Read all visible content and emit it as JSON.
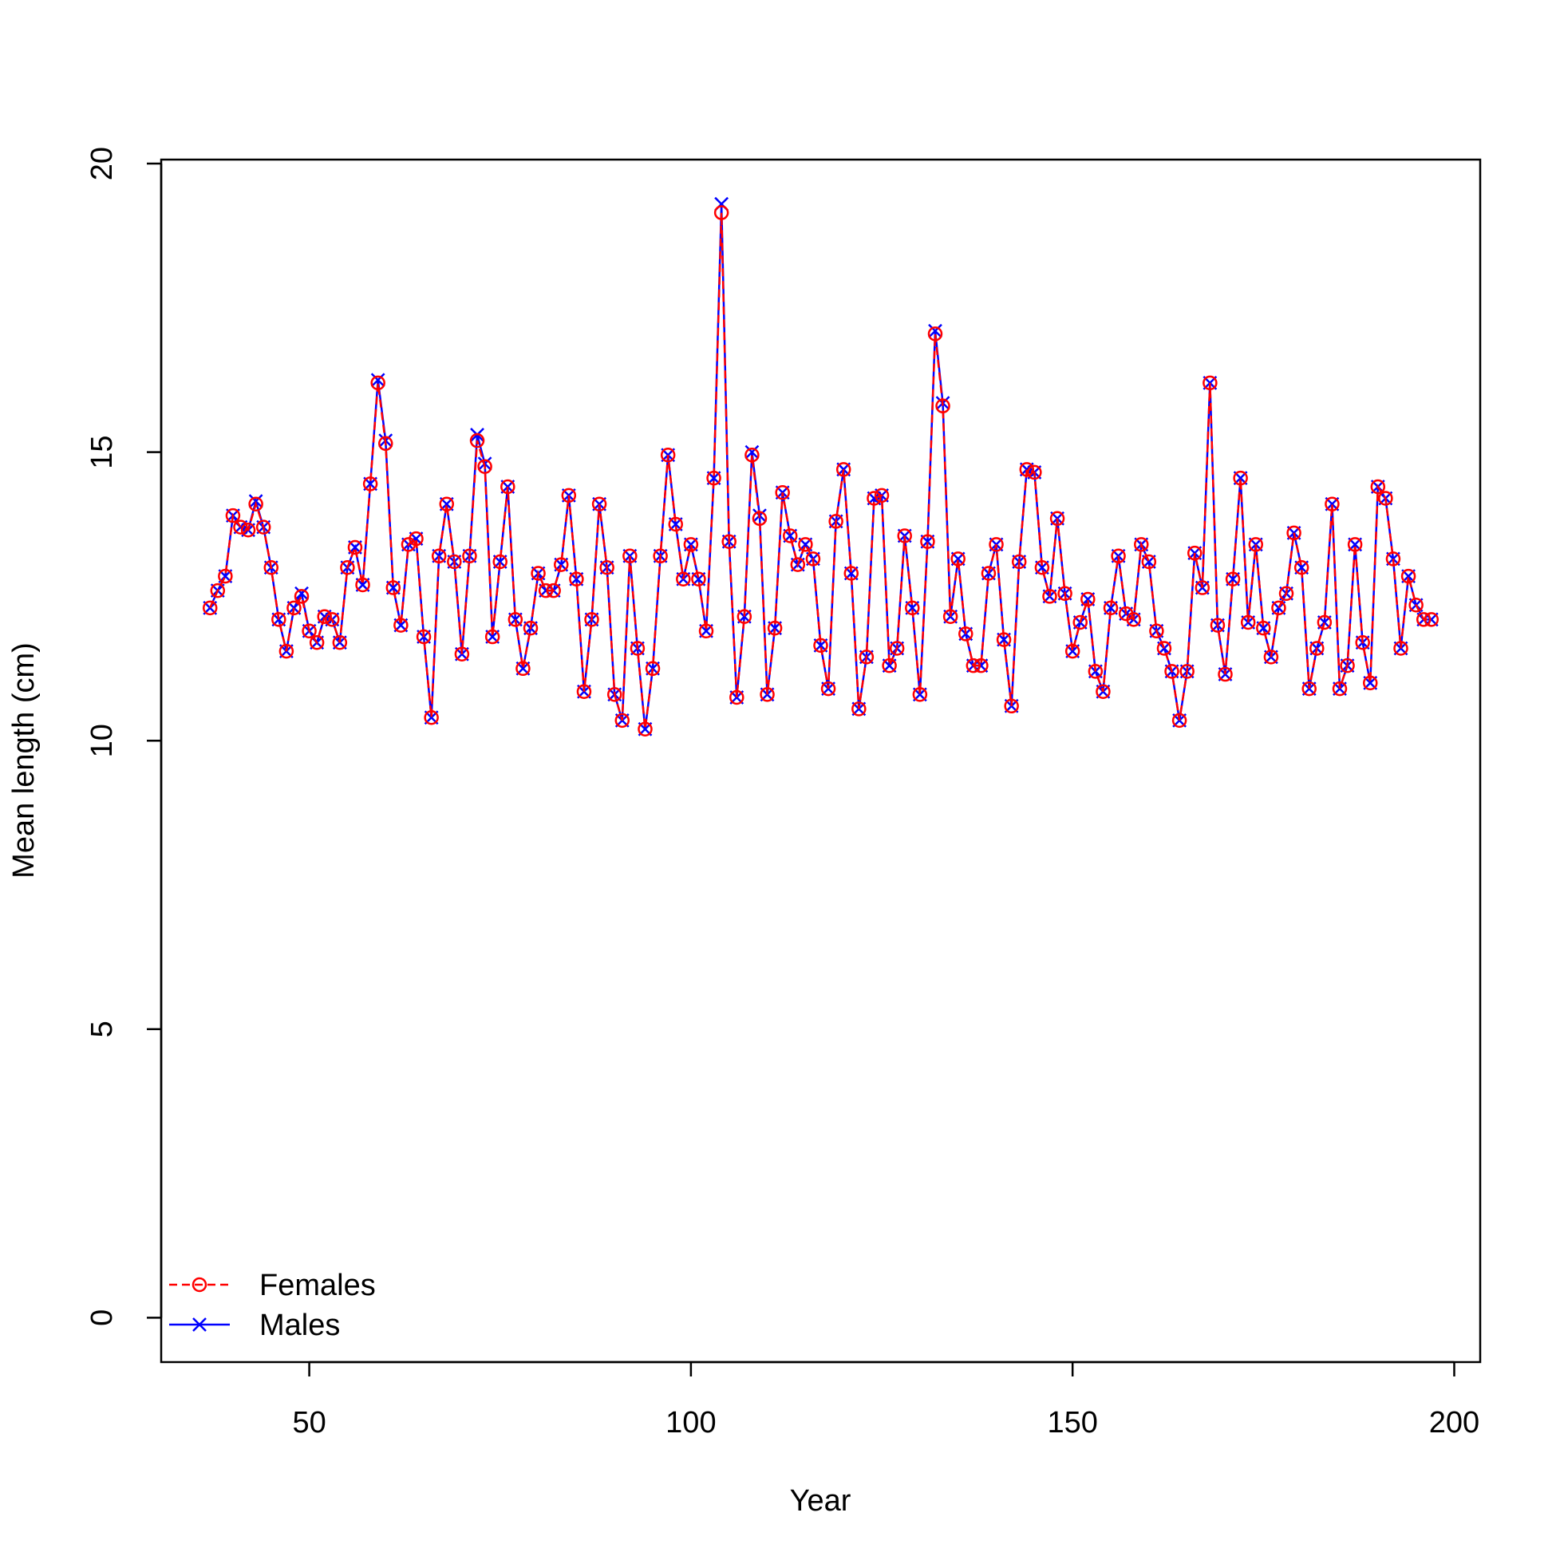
{
  "chart_data": {
    "type": "line",
    "xlabel": "Year",
    "ylabel": "Mean length (cm)",
    "xlim": [
      30.6,
      203.4
    ],
    "xticks": [
      50,
      100,
      150,
      200
    ],
    "ylim": [
      -0.77,
      20.07
    ],
    "yticks": [
      0,
      5,
      10,
      15,
      20
    ],
    "legend": "bottomleft",
    "x": [
      37,
      38,
      39,
      40,
      41,
      42,
      43,
      44,
      45,
      46,
      47,
      48,
      49,
      50,
      51,
      52,
      53,
      54,
      55,
      56,
      57,
      58,
      59,
      60,
      61,
      62,
      63,
      64,
      65,
      66,
      67,
      68,
      69,
      70,
      71,
      72,
      73,
      74,
      75,
      76,
      77,
      78,
      79,
      80,
      81,
      82,
      83,
      84,
      85,
      86,
      87,
      88,
      89,
      90,
      91,
      92,
      93,
      94,
      95,
      96,
      97,
      98,
      99,
      100,
      101,
      102,
      103,
      104,
      105,
      106,
      107,
      108,
      109,
      110,
      111,
      112,
      113,
      114,
      115,
      116,
      117,
      118,
      119,
      120,
      121,
      122,
      123,
      124,
      125,
      126,
      127,
      128,
      129,
      130,
      131,
      132,
      133,
      134,
      135,
      136,
      137,
      138,
      139,
      140,
      141,
      142,
      143,
      144,
      145,
      146,
      147,
      148,
      149,
      150,
      151,
      152,
      153,
      154,
      155,
      156,
      157,
      158,
      159,
      160,
      161,
      162,
      163,
      164,
      165,
      166,
      167,
      168,
      169,
      170,
      171,
      172,
      173,
      174,
      175,
      176,
      177,
      178,
      179,
      180,
      181,
      182,
      183,
      184,
      185,
      186,
      187,
      188,
      189,
      190,
      191,
      192,
      193,
      194,
      195,
      196,
      197
    ],
    "series": [
      {
        "name": "Males",
        "color": "#0000ff",
        "marker": "x",
        "dash": false,
        "values": [
          12.3,
          12.6,
          12.85,
          13.9,
          13.7,
          13.65,
          14.15,
          13.7,
          13.0,
          12.1,
          11.55,
          12.3,
          12.55,
          11.9,
          11.7,
          12.15,
          12.1,
          11.7,
          13.0,
          13.35,
          12.7,
          14.45,
          16.25,
          15.2,
          12.65,
          12.0,
          13.4,
          13.5,
          11.8,
          10.4,
          13.2,
          14.1,
          13.1,
          11.5,
          13.2,
          15.3,
          14.8,
          11.8,
          13.1,
          14.4,
          12.1,
          11.25,
          11.95,
          12.9,
          12.6,
          12.6,
          13.05,
          14.25,
          12.8,
          10.85,
          12.1,
          14.1,
          13.0,
          10.8,
          10.35,
          13.2,
          11.6,
          10.2,
          11.25,
          13.2,
          14.95,
          13.75,
          12.8,
          13.4,
          12.8,
          11.9,
          14.55,
          19.3,
          13.45,
          10.75,
          12.15,
          15.0,
          13.9,
          10.8,
          11.95,
          14.3,
          13.55,
          13.05,
          13.4,
          13.15,
          11.65,
          10.9,
          13.8,
          14.7,
          12.9,
          10.55,
          11.45,
          14.2,
          14.25,
          11.3,
          11.6,
          13.55,
          12.3,
          10.8,
          13.45,
          17.1,
          15.85,
          12.15,
          13.15,
          11.85,
          11.3,
          11.3,
          12.9,
          13.4,
          11.75,
          10.6,
          13.1,
          14.7,
          14.65,
          13.0,
          12.5,
          13.85,
          12.55,
          11.55,
          12.05,
          12.45,
          11.2,
          10.85,
          12.3,
          13.2,
          12.2,
          12.1,
          13.4,
          13.1,
          11.9,
          11.6,
          11.2,
          10.35,
          11.2,
          13.25,
          12.65,
          16.2,
          12.0,
          11.15,
          12.8,
          14.55,
          12.05,
          13.4,
          11.95,
          11.45,
          12.3,
          12.55,
          13.6,
          13.0,
          10.9,
          11.6,
          12.05,
          14.1,
          10.9,
          11.3,
          13.4,
          11.7,
          11.0,
          14.4,
          14.2,
          13.15,
          11.6,
          12.85,
          12.35,
          12.1,
          12.1
        ]
      },
      {
        "name": "Females",
        "color": "#ff0000",
        "marker": "o",
        "dash": true,
        "values": [
          12.3,
          12.6,
          12.85,
          13.9,
          13.7,
          13.65,
          14.1,
          13.7,
          13.0,
          12.1,
          11.55,
          12.3,
          12.5,
          11.9,
          11.7,
          12.15,
          12.1,
          11.7,
          13.0,
          13.35,
          12.7,
          14.45,
          16.2,
          15.15,
          12.65,
          12.0,
          13.4,
          13.5,
          11.8,
          10.4,
          13.2,
          14.1,
          13.1,
          11.5,
          13.2,
          15.2,
          14.75,
          11.8,
          13.1,
          14.4,
          12.1,
          11.25,
          11.95,
          12.9,
          12.6,
          12.6,
          13.05,
          14.25,
          12.8,
          10.85,
          12.1,
          14.1,
          13.0,
          10.8,
          10.35,
          13.2,
          11.6,
          10.2,
          11.25,
          13.2,
          14.95,
          13.75,
          12.8,
          13.4,
          12.8,
          11.9,
          14.55,
          19.15,
          13.45,
          10.75,
          12.15,
          14.95,
          13.85,
          10.8,
          11.95,
          14.3,
          13.55,
          13.05,
          13.4,
          13.15,
          11.65,
          10.9,
          13.8,
          14.7,
          12.9,
          10.55,
          11.45,
          14.2,
          14.25,
          11.3,
          11.6,
          13.55,
          12.3,
          10.8,
          13.45,
          17.05,
          15.8,
          12.15,
          13.15,
          11.85,
          11.3,
          11.3,
          12.9,
          13.4,
          11.75,
          10.6,
          13.1,
          14.7,
          14.65,
          13.0,
          12.5,
          13.85,
          12.55,
          11.55,
          12.05,
          12.45,
          11.2,
          10.85,
          12.3,
          13.2,
          12.2,
          12.1,
          13.4,
          13.1,
          11.9,
          11.6,
          11.2,
          10.35,
          11.2,
          13.25,
          12.65,
          16.2,
          12.0,
          11.15,
          12.8,
          14.55,
          12.05,
          13.4,
          11.95,
          11.45,
          12.3,
          12.55,
          13.6,
          13.0,
          10.9,
          11.6,
          12.05,
          14.1,
          10.9,
          11.3,
          13.4,
          11.7,
          11.0,
          14.4,
          14.2,
          13.15,
          11.6,
          12.85,
          12.35,
          12.1,
          12.1
        ]
      }
    ]
  }
}
